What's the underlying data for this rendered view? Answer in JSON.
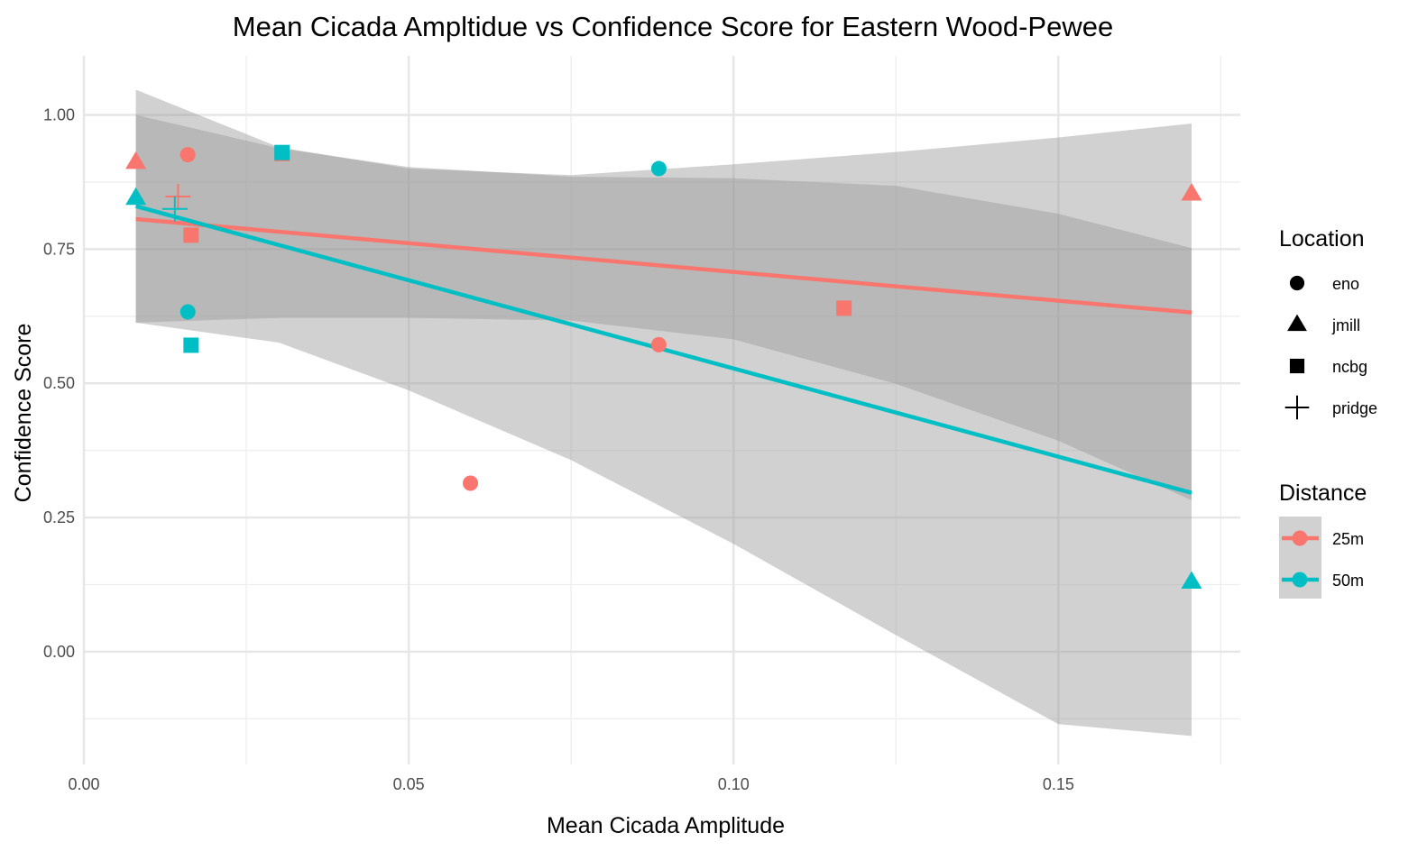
{
  "chart_data": {
    "type": "scatter",
    "title": "Mean Cicada Ampltidue vs Confidence Score for Eastern Wood-Pewee",
    "xlabel": "Mean Cicada Amplitude",
    "ylabel": "Confidence Score",
    "xlim": [
      0.0,
      0.178
    ],
    "ylim": [
      -0.21,
      1.11
    ],
    "x_ticks": [
      0.0,
      0.05,
      0.1,
      0.15
    ],
    "x_tick_labels": [
      "0.00",
      "0.05",
      "0.10",
      "0.15"
    ],
    "y_ticks": [
      0.0,
      0.25,
      0.5,
      0.75,
      1.0
    ],
    "y_tick_labels": [
      "0.00",
      "0.25",
      "0.50",
      "0.75",
      "1.00"
    ],
    "grid": true,
    "legend_placement": "right",
    "colors": {
      "25m": "#F8766D",
      "50m": "#00BFC4",
      "band": "#999999"
    },
    "legends": {
      "shape": {
        "title": "Location",
        "items": [
          {
            "label": "eno",
            "shape": "circle"
          },
          {
            "label": "jmill",
            "shape": "triangle"
          },
          {
            "label": "ncbg",
            "shape": "square"
          },
          {
            "label": "pridge",
            "shape": "plus"
          }
        ]
      },
      "color": {
        "title": "Distance",
        "items": [
          {
            "label": "25m",
            "color": "#F8766D"
          },
          {
            "label": "50m",
            "color": "#00BFC4"
          }
        ]
      }
    },
    "points": [
      {
        "x": 0.008,
        "y": 0.912,
        "location": "jmill",
        "distance": "25m"
      },
      {
        "x": 0.008,
        "y": 0.845,
        "location": "jmill",
        "distance": "50m"
      },
      {
        "x": 0.016,
        "y": 0.926,
        "location": "eno",
        "distance": "25m"
      },
      {
        "x": 0.016,
        "y": 0.633,
        "location": "eno",
        "distance": "50m"
      },
      {
        "x": 0.0165,
        "y": 0.776,
        "location": "ncbg",
        "distance": "25m"
      },
      {
        "x": 0.0165,
        "y": 0.571,
        "location": "ncbg",
        "distance": "50m"
      },
      {
        "x": 0.0145,
        "y": 0.848,
        "location": "pridge",
        "distance": "25m"
      },
      {
        "x": 0.014,
        "y": 0.825,
        "location": "pridge",
        "distance": "50m"
      },
      {
        "x": 0.0305,
        "y": 0.928,
        "location": "ncbg",
        "distance": "25m"
      },
      {
        "x": 0.0305,
        "y": 0.93,
        "location": "ncbg",
        "distance": "50m"
      },
      {
        "x": 0.0595,
        "y": 0.314,
        "location": "eno",
        "distance": "25m"
      },
      {
        "x": 0.0885,
        "y": 0.572,
        "location": "eno",
        "distance": "25m"
      },
      {
        "x": 0.0885,
        "y": 0.9,
        "location": "eno",
        "distance": "50m"
      },
      {
        "x": 0.117,
        "y": 0.64,
        "location": "ncbg",
        "distance": "25m"
      },
      {
        "x": 0.1705,
        "y": 0.853,
        "location": "jmill",
        "distance": "25m"
      },
      {
        "x": 0.1705,
        "y": 0.13,
        "location": "jmill",
        "distance": "50m"
      }
    ],
    "fits": [
      {
        "distance": "25m",
        "x": [
          0.008,
          0.1705
        ],
        "y": [
          0.806,
          0.632
        ],
        "band_x": [
          0.008,
          0.03,
          0.05,
          0.075,
          0.1,
          0.125,
          0.15,
          0.1705
        ],
        "band_upper": [
          1.0,
          0.938,
          0.903,
          0.885,
          0.882,
          0.868,
          0.816,
          0.752
        ],
        "band_lower": [
          0.613,
          0.622,
          0.622,
          0.617,
          0.582,
          0.499,
          0.393,
          0.282
        ]
      },
      {
        "distance": "50m",
        "x": [
          0.008,
          0.1705
        ],
        "y": [
          0.83,
          0.296
        ],
        "band_x": [
          0.008,
          0.03,
          0.05,
          0.075,
          0.1,
          0.125,
          0.15,
          0.1705
        ],
        "band_upper": [
          1.047,
          0.94,
          0.9,
          0.888,
          0.908,
          0.931,
          0.958,
          0.984
        ],
        "band_lower": [
          0.613,
          0.576,
          0.487,
          0.357,
          0.201,
          0.031,
          -0.135,
          -0.157
        ]
      }
    ]
  }
}
